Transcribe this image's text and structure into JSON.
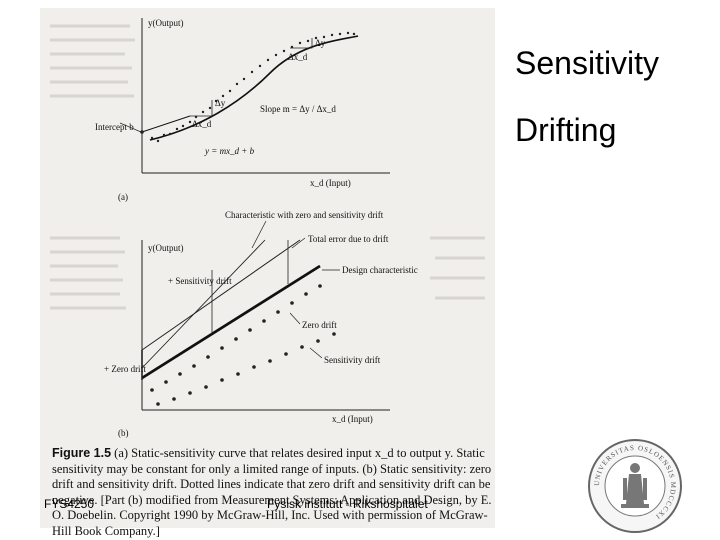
{
  "slide": {
    "titles": [
      "Sensitivity",
      "Drifting"
    ],
    "footer_left": "FYS4250",
    "footer_center": "Fysisk institutt - Rikshospitalet",
    "seal_text": "UNIVERSITAS OSLOENSIS MDCCCXI"
  },
  "figure_a": {
    "y_axis": "y(Output)",
    "x_axis": "x_d (Input)",
    "intercept": "Intercept b",
    "slope": "Slope m = Δy / Δx_d",
    "equation": "y = mx_d + b",
    "delta_y": "Δy",
    "delta_x": "Δx_d",
    "panel": "(a)"
  },
  "figure_b": {
    "y_axis": "y(Output)",
    "x_axis": "x_d (Input)",
    "char_zero_sens": "Characteristic with zero and sensitivity drift",
    "total_error": "Total error due to drift",
    "design_char": "Design characteristic",
    "sens_drift_left": "+ Sensitivity drift",
    "zero_drift": "Zero drift",
    "sens_drift": "Sensitivity drift",
    "zero_drift_left": "+ Zero drift",
    "panel": "(b)"
  },
  "caption": {
    "label": "Figure 1.5",
    "text": "(a) Static-sensitivity curve that relates desired input x_d to output y. Static sensitivity may be constant for only a limited range of inputs. (b) Static sensitivity: zero drift and sensitivity drift. Dotted lines indicate that zero drift and sensitivity drift can be negative. [Part (b) modified from Measurement Systems: Application and Design, by E. O. Doebelin. Copyright 1990 by McGraw-Hill, Inc. Used with permission of McGraw-Hill Book Company.]"
  }
}
